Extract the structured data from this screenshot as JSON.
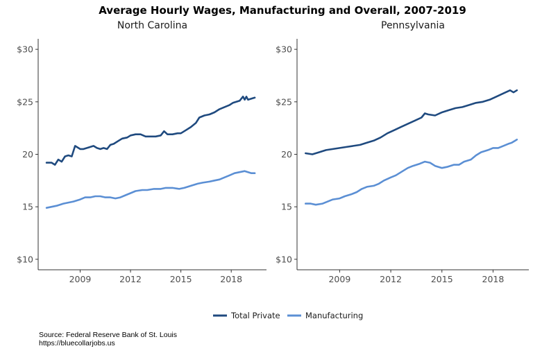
{
  "chart_data": {
    "type": "line",
    "title": "Average Hourly Wages, Manufacturing and Overall, 2007-2019",
    "legend_position": "bottom",
    "series_colors": {
      "Total Private": "#1f4a7f",
      "Manufacturing": "#5b8fd4"
    },
    "y_tick_labels": [
      "$10",
      "15",
      "20",
      "$25",
      "$30"
    ],
    "y_ticks": [
      10,
      15,
      20,
      25,
      30
    ],
    "x_ticks": [
      2009,
      2012,
      2015,
      2018
    ],
    "ylim": [
      9,
      31
    ],
    "xlim": [
      2006.5,
      2020.1
    ],
    "grid": false,
    "panels": [
      {
        "title": "North Carolina",
        "series": [
          {
            "name": "Total Private",
            "x": [
              2007.0,
              2007.3,
              2007.5,
              2007.7,
              2007.9,
              2008.1,
              2008.3,
              2008.5,
              2008.7,
              2008.9,
              2009.0,
              2009.2,
              2009.4,
              2009.6,
              2009.8,
              2010.0,
              2010.2,
              2010.4,
              2010.6,
              2010.8,
              2011.0,
              2011.3,
              2011.5,
              2011.8,
              2012.0,
              2012.3,
              2012.6,
              2012.9,
              2013.2,
              2013.5,
              2013.8,
              2014.0,
              2014.2,
              2014.5,
              2014.8,
              2015.0,
              2015.3,
              2015.6,
              2015.9,
              2016.1,
              2016.4,
              2016.7,
              2017.0,
              2017.3,
              2017.6,
              2017.9,
              2018.1,
              2018.3,
              2018.5,
              2018.7,
              2018.8,
              2018.9,
              2019.0,
              2019.2,
              2019.4
            ],
            "values": [
              19.2,
              19.2,
              19.0,
              19.5,
              19.3,
              19.8,
              19.9,
              19.8,
              20.8,
              20.6,
              20.5,
              20.5,
              20.6,
              20.7,
              20.8,
              20.6,
              20.5,
              20.6,
              20.5,
              20.9,
              21.0,
              21.3,
              21.5,
              21.6,
              21.8,
              21.9,
              21.9,
              21.7,
              21.7,
              21.7,
              21.8,
              22.2,
              21.9,
              21.9,
              22.0,
              22.0,
              22.3,
              22.6,
              23.0,
              23.5,
              23.7,
              23.8,
              24.0,
              24.3,
              24.5,
              24.7,
              24.9,
              25.0,
              25.1,
              25.5,
              25.2,
              25.5,
              25.2,
              25.3,
              25.4
            ]
          },
          {
            "name": "Manufacturing",
            "x": [
              2007.0,
              2007.3,
              2007.6,
              2008.0,
              2008.3,
              2008.6,
              2009.0,
              2009.3,
              2009.6,
              2009.9,
              2010.2,
              2010.5,
              2010.8,
              2011.1,
              2011.4,
              2011.7,
              2012.0,
              2012.3,
              2012.7,
              2013.0,
              2013.4,
              2013.8,
              2014.1,
              2014.5,
              2014.9,
              2015.2,
              2015.6,
              2016.0,
              2016.3,
              2016.7,
              2017.0,
              2017.3,
              2017.6,
              2017.9,
              2018.2,
              2018.5,
              2018.8,
              2019.0,
              2019.2,
              2019.4
            ],
            "values": [
              14.9,
              15.0,
              15.1,
              15.3,
              15.4,
              15.5,
              15.7,
              15.9,
              15.9,
              16.0,
              16.0,
              15.9,
              15.9,
              15.8,
              15.9,
              16.1,
              16.3,
              16.5,
              16.6,
              16.6,
              16.7,
              16.7,
              16.8,
              16.8,
              16.7,
              16.8,
              17.0,
              17.2,
              17.3,
              17.4,
              17.5,
              17.6,
              17.8,
              18.0,
              18.2,
              18.3,
              18.4,
              18.3,
              18.2,
              18.2
            ]
          }
        ]
      },
      {
        "title": "Pennsylvania",
        "series": [
          {
            "name": "Total Private",
            "x": [
              2007.0,
              2007.4,
              2007.8,
              2008.2,
              2008.6,
              2009.0,
              2009.4,
              2009.8,
              2010.2,
              2010.6,
              2011.0,
              2011.4,
              2011.8,
              2012.2,
              2012.6,
              2013.0,
              2013.4,
              2013.8,
              2014.0,
              2014.2,
              2014.6,
              2015.0,
              2015.4,
              2015.8,
              2016.2,
              2016.6,
              2017.0,
              2017.4,
              2017.8,
              2018.2,
              2018.6,
              2019.0,
              2019.2,
              2019.4
            ],
            "values": [
              20.1,
              20.0,
              20.2,
              20.4,
              20.5,
              20.6,
              20.7,
              20.8,
              20.9,
              21.1,
              21.3,
              21.6,
              22.0,
              22.3,
              22.6,
              22.9,
              23.2,
              23.5,
              23.9,
              23.8,
              23.7,
              24.0,
              24.2,
              24.4,
              24.5,
              24.7,
              24.9,
              25.0,
              25.2,
              25.5,
              25.8,
              26.1,
              25.9,
              26.1
            ]
          },
          {
            "name": "Manufacturing",
            "x": [
              2007.0,
              2007.3,
              2007.6,
              2008.0,
              2008.3,
              2008.6,
              2009.0,
              2009.3,
              2009.7,
              2010.0,
              2010.3,
              2010.6,
              2011.0,
              2011.3,
              2011.6,
              2012.0,
              2012.3,
              2012.7,
              2013.0,
              2013.3,
              2013.7,
              2014.0,
              2014.3,
              2014.6,
              2015.0,
              2015.3,
              2015.7,
              2016.0,
              2016.3,
              2016.7,
              2017.0,
              2017.3,
              2017.7,
              2018.0,
              2018.3,
              2018.6,
              2018.9,
              2019.1,
              2019.3,
              2019.4
            ],
            "values": [
              15.3,
              15.3,
              15.2,
              15.3,
              15.5,
              15.7,
              15.8,
              16.0,
              16.2,
              16.4,
              16.7,
              16.9,
              17.0,
              17.2,
              17.5,
              17.8,
              18.0,
              18.4,
              18.7,
              18.9,
              19.1,
              19.3,
              19.2,
              18.9,
              18.7,
              18.8,
              19.0,
              19.0,
              19.3,
              19.5,
              19.9,
              20.2,
              20.4,
              20.6,
              20.6,
              20.8,
              21.0,
              21.1,
              21.3,
              21.4
            ]
          }
        ]
      }
    ]
  },
  "source": {
    "line1": "Source: Federal Reserve Bank of St. Louis",
    "line2": "https://bluecollarjobs.us"
  }
}
